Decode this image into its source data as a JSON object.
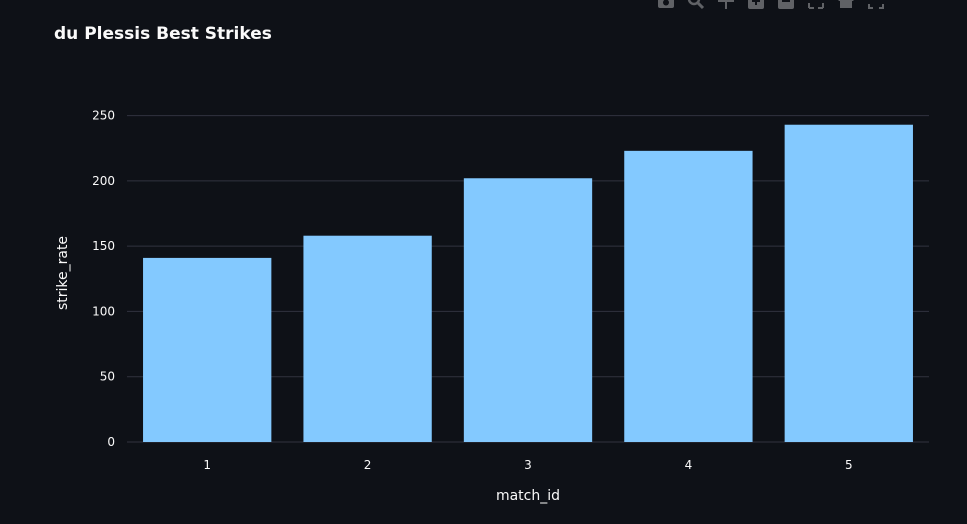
{
  "chart_data": {
    "type": "bar",
    "title": "du Plessis Best Strikes",
    "xlabel": "match_id",
    "ylabel": "strike_rate",
    "categories": [
      "1",
      "2",
      "3",
      "4",
      "5"
    ],
    "values": [
      141,
      158,
      202,
      223,
      243
    ],
    "ylim": [
      0,
      265
    ],
    "yticks": [
      0,
      50,
      100,
      150,
      200,
      250
    ],
    "grid": true,
    "bar_color": "#83c9ff",
    "background": "#0e1117",
    "gridline_color": "#31333f"
  },
  "modebar": {
    "icons": [
      "camera-icon",
      "zoom-icon",
      "pan-icon",
      "zoom-in-icon",
      "zoom-out-icon",
      "autoscale-icon",
      "home-icon",
      "fullscreen-icon"
    ]
  }
}
